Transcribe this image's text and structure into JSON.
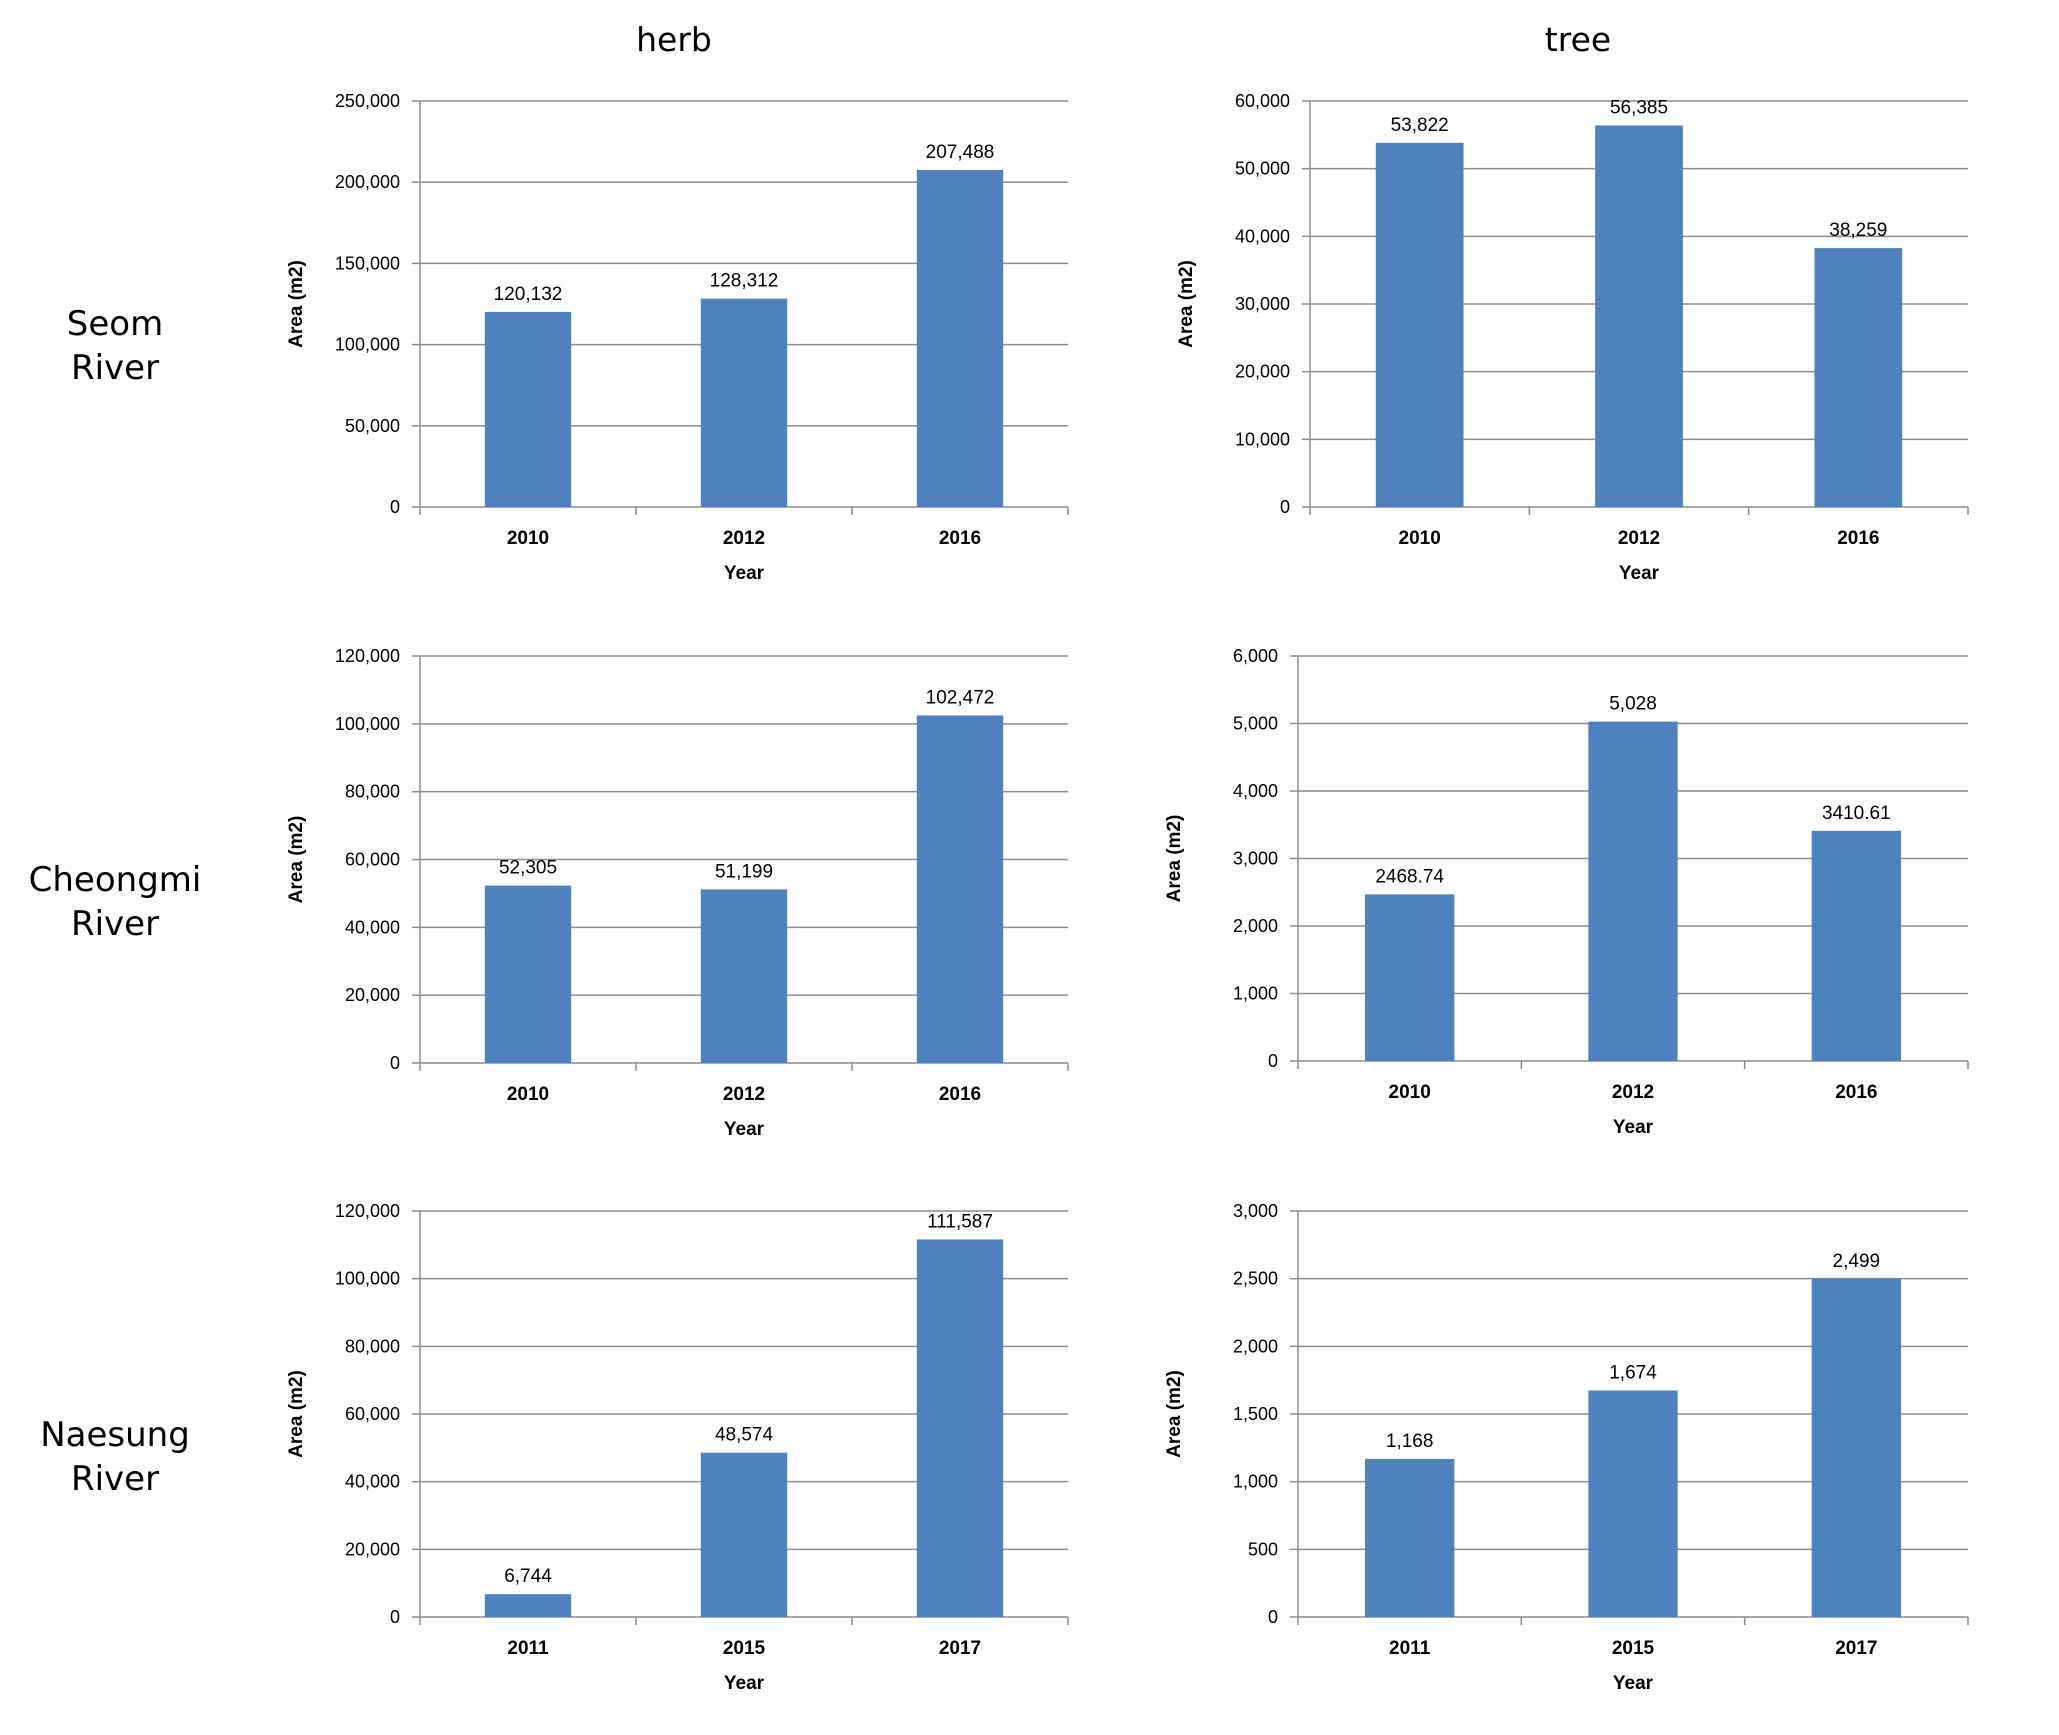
{
  "columns": [
    "herb",
    "tree"
  ],
  "rows": [
    {
      "line1": "Seom",
      "line2": "River"
    },
    {
      "line1": "Cheongmi",
      "line2": "River"
    },
    {
      "line1": "Naesung",
      "line2": "River"
    }
  ],
  "colors": {
    "bar": "#4f81bd",
    "grid": "#8c8c8c",
    "axis": "#8c8c8c",
    "text": "#000000"
  },
  "chart_data": [
    {
      "type": "bar",
      "id": "seom-herb",
      "categories": [
        "2010",
        "2012",
        "2016"
      ],
      "values": [
        120132,
        128312,
        207488
      ],
      "labels": [
        "120,132",
        "128,312",
        "207,488"
      ],
      "ticks": [
        "0",
        "50,000",
        "100,000",
        "150,000",
        "200,000",
        "250,000"
      ],
      "ylim": [
        0,
        250000
      ],
      "xlabel": "Year",
      "ylabel": "Area (m2)"
    },
    {
      "type": "bar",
      "id": "seom-tree",
      "categories": [
        "2010",
        "2012",
        "2016"
      ],
      "values": [
        53822,
        56385,
        38259
      ],
      "labels": [
        "53,822",
        "56,385",
        "38,259"
      ],
      "ticks": [
        "0",
        "10,000",
        "20,000",
        "30,000",
        "40,000",
        "50,000",
        "60,000"
      ],
      "ylim": [
        0,
        60000
      ],
      "xlabel": "Year",
      "ylabel": "Area (m2)"
    },
    {
      "type": "bar",
      "id": "cheongmi-herb",
      "categories": [
        "2010",
        "2012",
        "2016"
      ],
      "values": [
        52305,
        51199,
        102472
      ],
      "labels": [
        "52,305",
        "51,199",
        "102,472"
      ],
      "ticks": [
        "0",
        "20,000",
        "40,000",
        "60,000",
        "80,000",
        "100,000",
        "120,000"
      ],
      "ylim": [
        0,
        120000
      ],
      "xlabel": "Year",
      "ylabel": "Area (m2)"
    },
    {
      "type": "bar",
      "id": "cheongmi-tree",
      "categories": [
        "2010",
        "2012",
        "2016"
      ],
      "values": [
        2468.74,
        5028,
        3410.61
      ],
      "labels": [
        "2468.74",
        "5,028",
        "3410.61"
      ],
      "ticks": [
        "0",
        "1,000",
        "2,000",
        "3,000",
        "4,000",
        "5,000",
        "6,000"
      ],
      "ylim": [
        0,
        6000
      ],
      "xlabel": "Year",
      "ylabel": "Area (m2)"
    },
    {
      "type": "bar",
      "id": "naesung-herb",
      "categories": [
        "2011",
        "2015",
        "2017"
      ],
      "values": [
        6744,
        48574,
        111587
      ],
      "labels": [
        "6,744",
        "48,574",
        "111,587"
      ],
      "ticks": [
        "0",
        "20,000",
        "40,000",
        "60,000",
        "80,000",
        "100,000",
        "120,000"
      ],
      "ylim": [
        0,
        120000
      ],
      "xlabel": "Year",
      "ylabel": "Area (m2)"
    },
    {
      "type": "bar",
      "id": "naesung-tree",
      "categories": [
        "2011",
        "2015",
        "2017"
      ],
      "values": [
        1168,
        1674,
        2499
      ],
      "labels": [
        "1,168",
        "1,674",
        "2,499"
      ],
      "ticks": [
        "0",
        "500",
        "1,000",
        "1,500",
        "2,000",
        "2,500",
        "3,000"
      ],
      "ylim": [
        0,
        3000
      ],
      "xlabel": "Year",
      "ylabel": "Area (m2)"
    }
  ]
}
